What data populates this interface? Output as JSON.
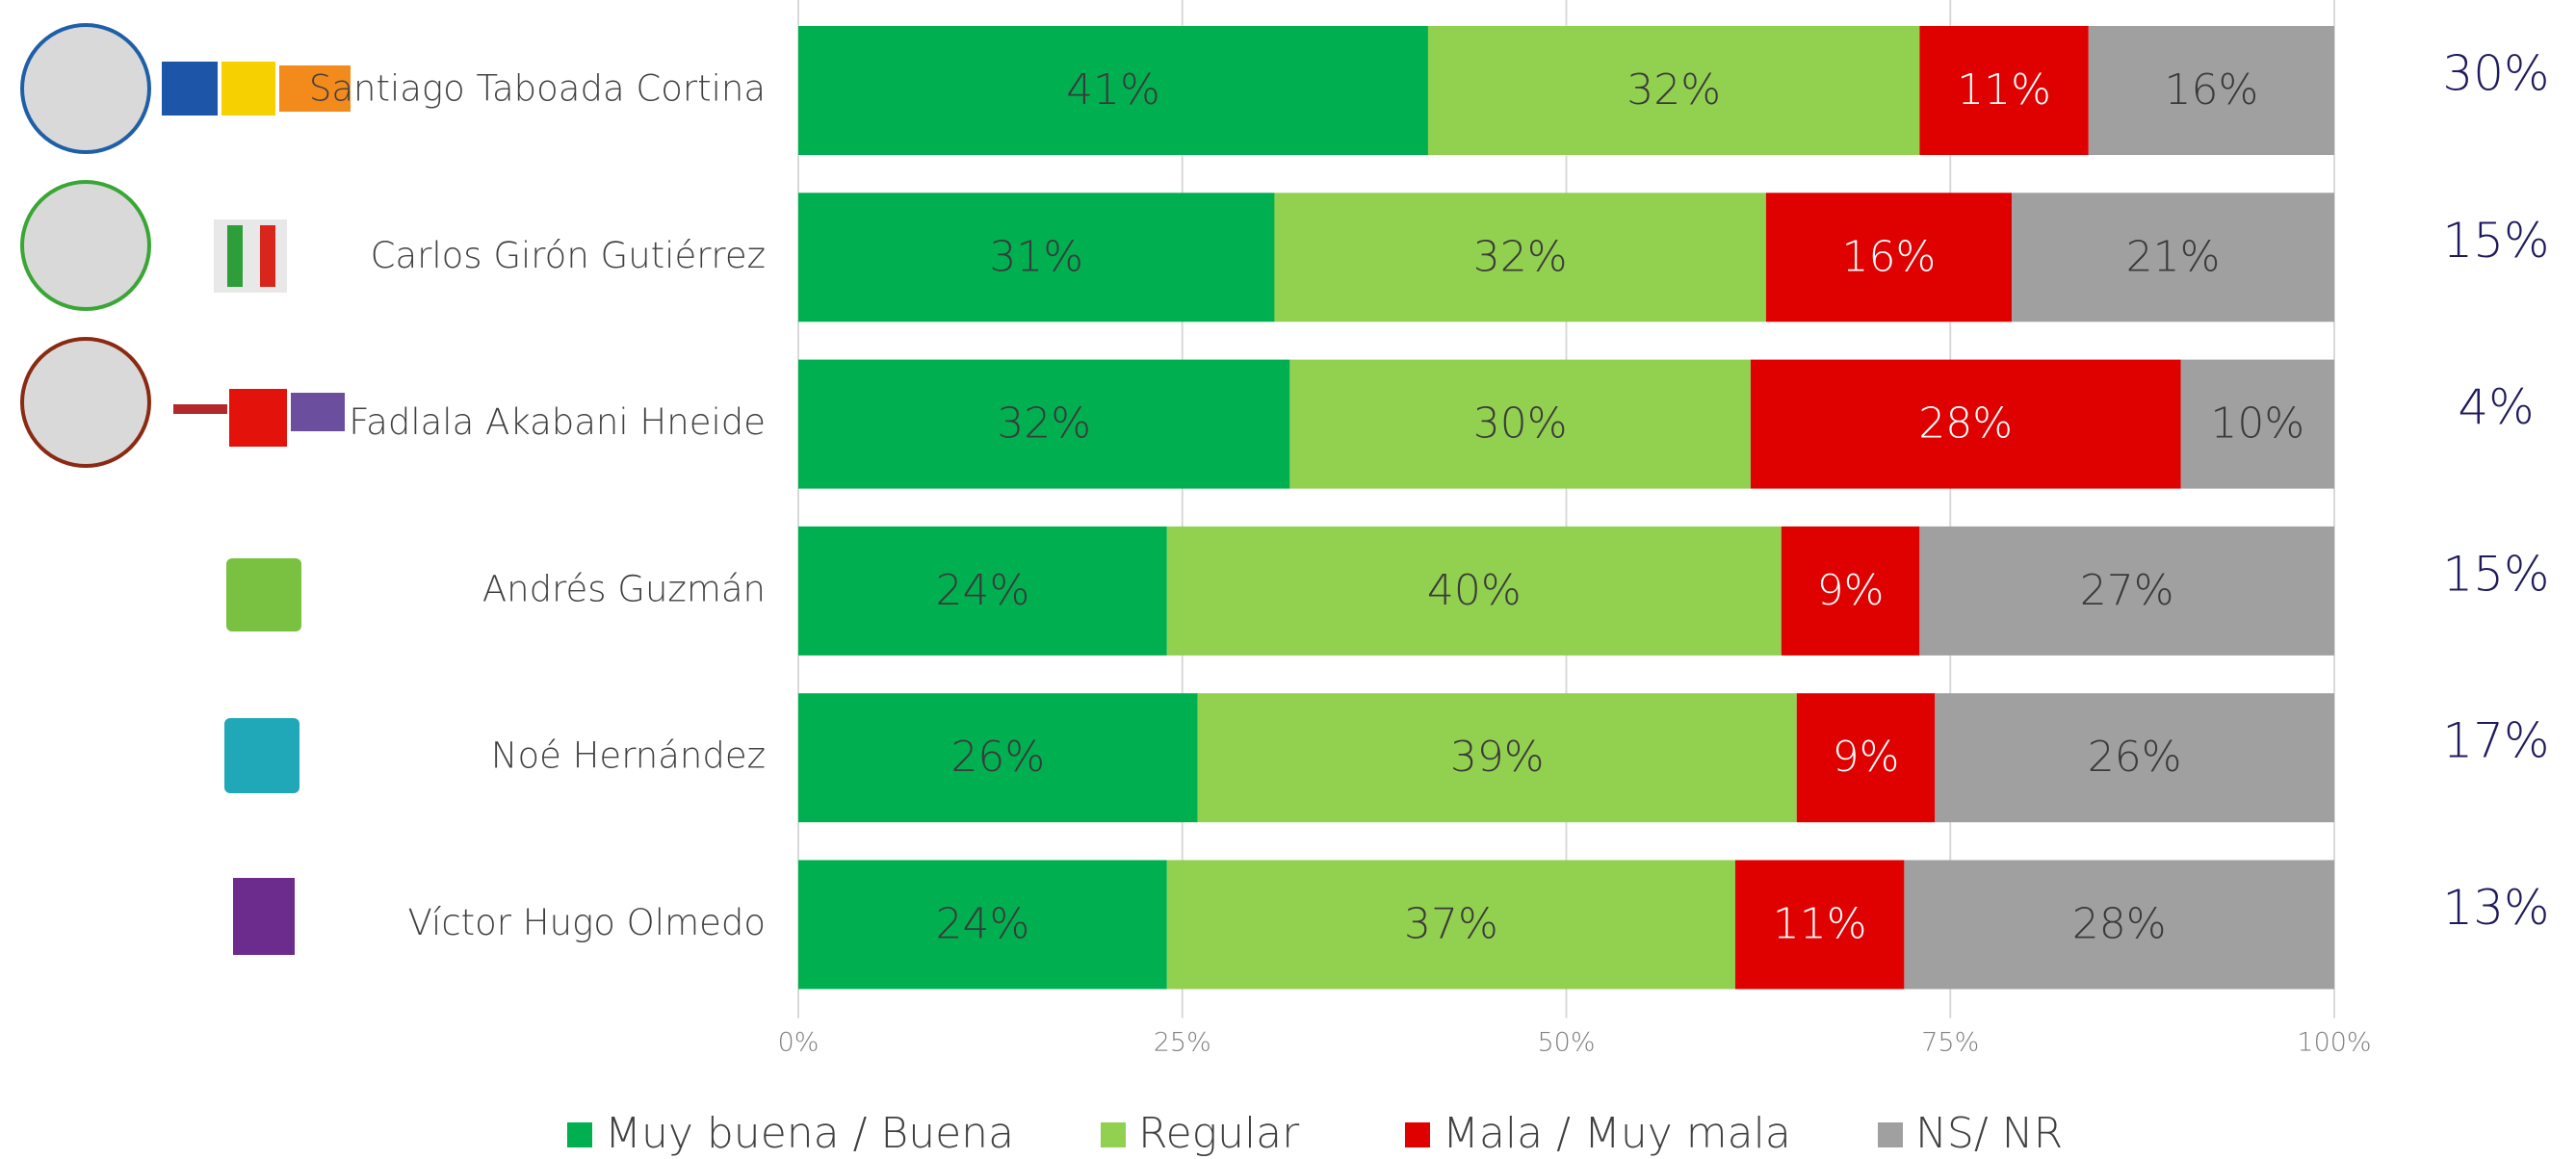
{
  "chart_data": {
    "type": "stacked-barh",
    "categories": [
      "Santiago Taboada Cortina",
      "Carlos Girón Gutiérrez",
      "Fadlala Akabani Hneide",
      "Andrés Guzmán",
      "Noé Hernández",
      "Víctor Hugo Olmedo"
    ],
    "series": [
      {
        "name": "Muy buena / Buena",
        "color": "#00b050",
        "label_color": "#3a3a3a",
        "values": [
          41,
          31,
          32,
          24,
          26,
          24
        ],
        "value_labels": [
          "41%",
          "31%",
          "32%",
          "24%",
          "26%",
          "24%"
        ]
      },
      {
        "name": "Regular",
        "color": "#92d050",
        "label_color": "#3a3a3a",
        "values": [
          32,
          32,
          30,
          40,
          39,
          37
        ],
        "value_labels": [
          "32%",
          "32%",
          "30%",
          "40%",
          "39%",
          "37%"
        ]
      },
      {
        "name": "Mala / Muy mala",
        "color": "#df0000",
        "label_color": "#ffffff",
        "values": [
          11,
          16,
          28,
          9,
          9,
          11
        ],
        "value_labels": [
          "11%",
          "16%",
          "28%",
          "9%",
          "9%",
          "11%"
        ]
      },
      {
        "name": "NS/ NR",
        "color": "#a0a0a0",
        "label_color": "#3a3a3a",
        "values": [
          16,
          21,
          10,
          27,
          26,
          28
        ],
        "value_labels": [
          "16%",
          "21%",
          "10%",
          "27%",
          "26%",
          "28%"
        ]
      }
    ],
    "side_values": [
      30,
      15,
      4,
      15,
      17,
      13
    ],
    "side_value_labels": [
      "30%",
      "15%",
      "4%",
      "15%",
      "17%",
      "13%"
    ],
    "xlim": [
      0,
      100
    ],
    "xticks": [
      {
        "value": 0,
        "label": "0%"
      },
      {
        "value": 25,
        "label": "25%"
      },
      {
        "value": 50,
        "label": "50%"
      },
      {
        "value": 75,
        "label": "75%"
      },
      {
        "value": 100,
        "label": "100%"
      }
    ],
    "grid": true
  }
}
